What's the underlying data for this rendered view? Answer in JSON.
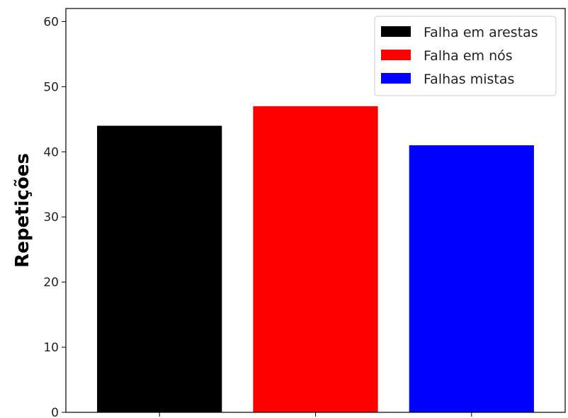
{
  "chart_data": {
    "type": "bar",
    "title": "",
    "xlabel": "",
    "ylabel": "Repetições",
    "ylim": [
      0,
      62
    ],
    "yticks": [
      0,
      10,
      20,
      30,
      40,
      50,
      60
    ],
    "categories": [
      "Falha em arestas",
      "Falha em nós",
      "Falhas mistas"
    ],
    "values": [
      44,
      47,
      41
    ],
    "colors": [
      "#000000",
      "#ff0000",
      "#0000ff"
    ],
    "show_x_tick_labels": false,
    "grid": false,
    "legend": {
      "placement": "top-right",
      "entries": [
        {
          "label": "Falha em arestas",
          "color": "#000000"
        },
        {
          "label": "Falha em nós",
          "color": "#ff0000"
        },
        {
          "label": "Falhas mistas",
          "color": "#0000ff"
        }
      ]
    }
  }
}
